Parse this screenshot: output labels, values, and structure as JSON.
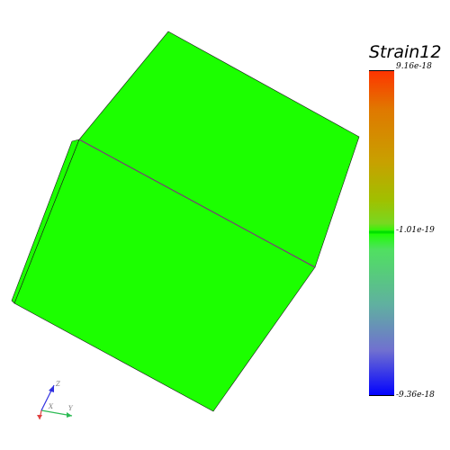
{
  "colors": {
    "background": "#ffffff",
    "face_fill": "#1cff00",
    "edge_line": "#8a2a8a",
    "axis_x": "#e04040",
    "axis_y": "#2dbb55",
    "axis_z": "#3030e0"
  },
  "legend": {
    "title": "Strain12",
    "max_label": "9.16e-18",
    "mid_label": "-1.01e-19",
    "min_label": "-9.36e-18",
    "gradient": [
      "#ff3300",
      "#e07800",
      "#c8a000",
      "#a0c000",
      "#78d820",
      "#1cff00",
      "#50e060",
      "#60b0a0",
      "#7070d0",
      "#0000ff"
    ]
  },
  "orientation": {
    "x_label": "X",
    "y_label": "Y",
    "z_label": "Z"
  }
}
